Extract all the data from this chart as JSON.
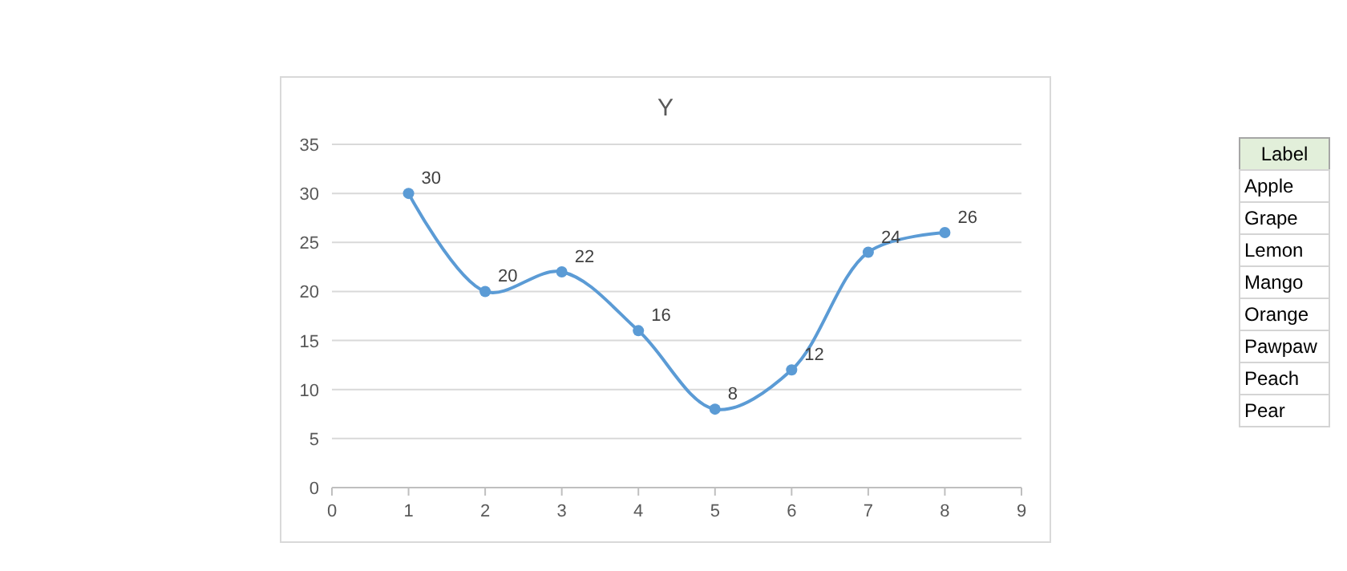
{
  "chart_data": [
    {
      "type": "line",
      "title": "Y",
      "x": [
        1,
        2,
        3,
        4,
        5,
        6,
        7,
        8
      ],
      "series": [
        {
          "color": "#5b9bd5",
          "values": [
            30,
            20,
            22,
            16,
            8,
            12,
            24,
            26
          ]
        }
      ],
      "xlim": [
        0,
        9
      ],
      "xticks": [
        0,
        1,
        2,
        3,
        4,
        5,
        6,
        7,
        8,
        9
      ],
      "ylim": [
        0,
        35
      ],
      "yticks": [
        0,
        5,
        10,
        15,
        20,
        25,
        30,
        35
      ],
      "grid": "y",
      "marker": "circle",
      "line_style": "solid",
      "data_labels": true
    },
    {
      "type": "other",
      "title": "Label",
      "annotations": [
        "Apple",
        "Grape",
        "Lemon",
        "Mango",
        "Orange",
        "Pawpaw",
        "Peach",
        "Pear"
      ]
    }
  ]
}
